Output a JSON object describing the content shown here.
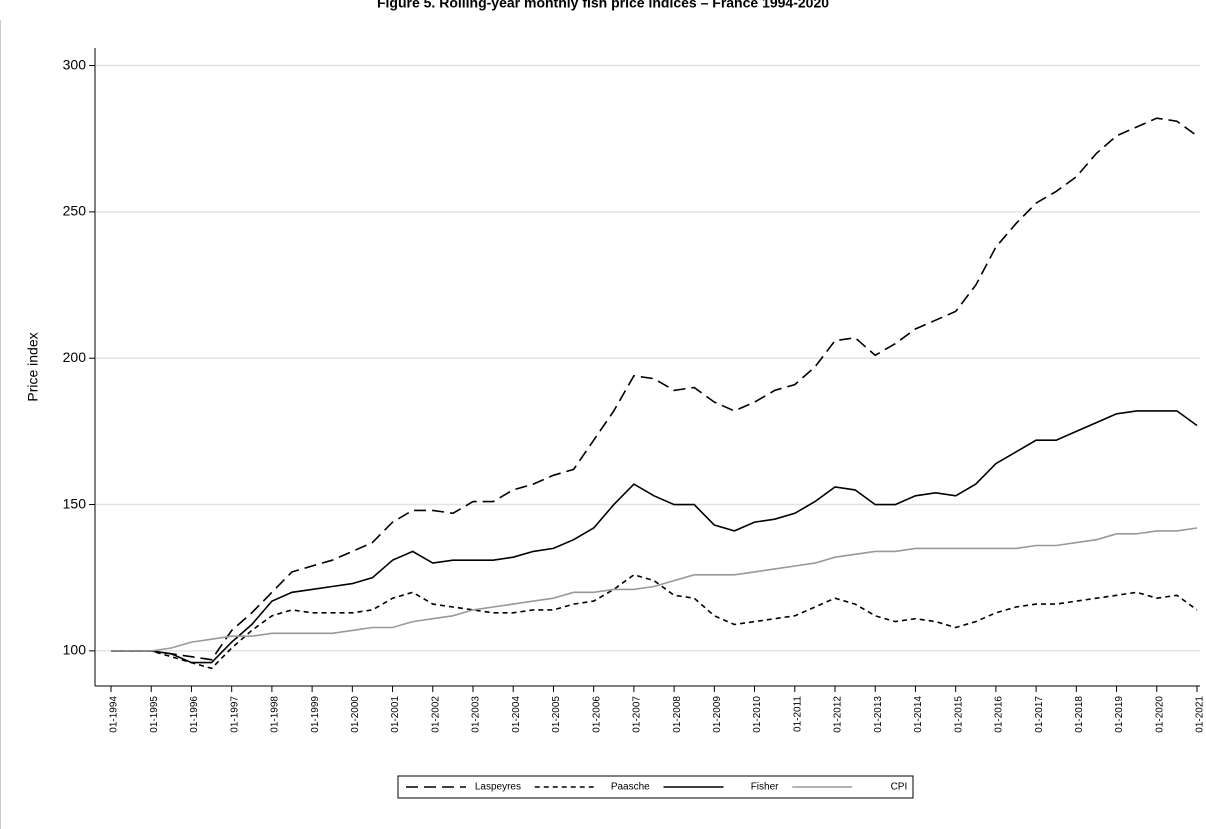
{
  "chart_data": {
    "type": "line",
    "title": "Figure 5. Rolling-year monthly fish price indices – France 1994-2020",
    "y_label": "Price index",
    "x": [
      "01-1994",
      null,
      "01-1995",
      null,
      "01-1996",
      null,
      "01-1997",
      null,
      "01-1998",
      null,
      "01-1999",
      null,
      "01-2000",
      null,
      "01-2001",
      null,
      "01-2002",
      null,
      "01-2003",
      null,
      "01-2004",
      null,
      "01-2005",
      null,
      "01-2006",
      null,
      "01-2007",
      null,
      "01-2008",
      null,
      "01-2009",
      null,
      "01-2010",
      null,
      "01-2011",
      null,
      "01-2012",
      null,
      "01-2013",
      null,
      "01-2014",
      null,
      "01-2015",
      null,
      "01-2016",
      null,
      "01-2017",
      null,
      "01-2018",
      null,
      "01-2019",
      null,
      "01-2020",
      null,
      "01-2021"
    ],
    "ylim": [
      88,
      306
    ],
    "yticks": [
      100,
      150,
      200,
      250,
      300
    ],
    "grid": true,
    "legend": "bottom",
    "series": [
      {
        "name": "Laspeyres",
        "color": "#000000",
        "dash": "long",
        "values": [
          100,
          100,
          100,
          99,
          98,
          97,
          107,
          113,
          120,
          127,
          129,
          131,
          134,
          137,
          144,
          148,
          148,
          147,
          151,
          151,
          155,
          157,
          160,
          162,
          172,
          182,
          194,
          193,
          189,
          190,
          185,
          182,
          185,
          189,
          191,
          197,
          206,
          207,
          201,
          205,
          210,
          213,
          216,
          225,
          238,
          246,
          253,
          257,
          262,
          270,
          276,
          279,
          282,
          281,
          276
        ]
      },
      {
        "name": "Paasche",
        "color": "#000000",
        "dash": "short",
        "values": [
          100,
          100,
          100,
          98,
          96,
          94,
          101,
          107,
          112,
          114,
          113,
          113,
          113,
          114,
          118,
          120,
          116,
          115,
          114,
          113,
          113,
          114,
          114,
          116,
          117,
          121,
          126,
          124,
          119,
          118,
          112,
          109,
          110,
          111,
          112,
          115,
          118,
          116,
          112,
          110,
          111,
          110,
          108,
          110,
          113,
          115,
          116,
          116,
          117,
          118,
          119,
          120,
          118,
          119,
          114
        ]
      },
      {
        "name": "Fisher",
        "color": "#000000",
        "dash": "solid",
        "values": [
          100,
          100,
          100,
          99,
          96,
          96,
          103,
          109,
          117,
          120,
          121,
          122,
          123,
          125,
          131,
          134,
          130,
          131,
          131,
          131,
          132,
          134,
          135,
          138,
          142,
          150,
          157,
          153,
          150,
          150,
          143,
          141,
          144,
          145,
          147,
          151,
          156,
          155,
          150,
          150,
          153,
          154,
          153,
          157,
          164,
          168,
          172,
          172,
          175,
          178,
          181,
          182,
          182,
          182,
          177
        ]
      },
      {
        "name": "CPI",
        "color": "#999999",
        "dash": "solid",
        "values": [
          100,
          100,
          100,
          101,
          103,
          104,
          105,
          105,
          106,
          106,
          106,
          106,
          107,
          108,
          108,
          110,
          111,
          112,
          114,
          115,
          116,
          117,
          118,
          120,
          120,
          121,
          121,
          122,
          124,
          126,
          126,
          126,
          127,
          128,
          129,
          130,
          132,
          133,
          134,
          134,
          135,
          135,
          135,
          135,
          135,
          135,
          136,
          136,
          137,
          138,
          140,
          140,
          141,
          141,
          142
        ]
      }
    ]
  }
}
